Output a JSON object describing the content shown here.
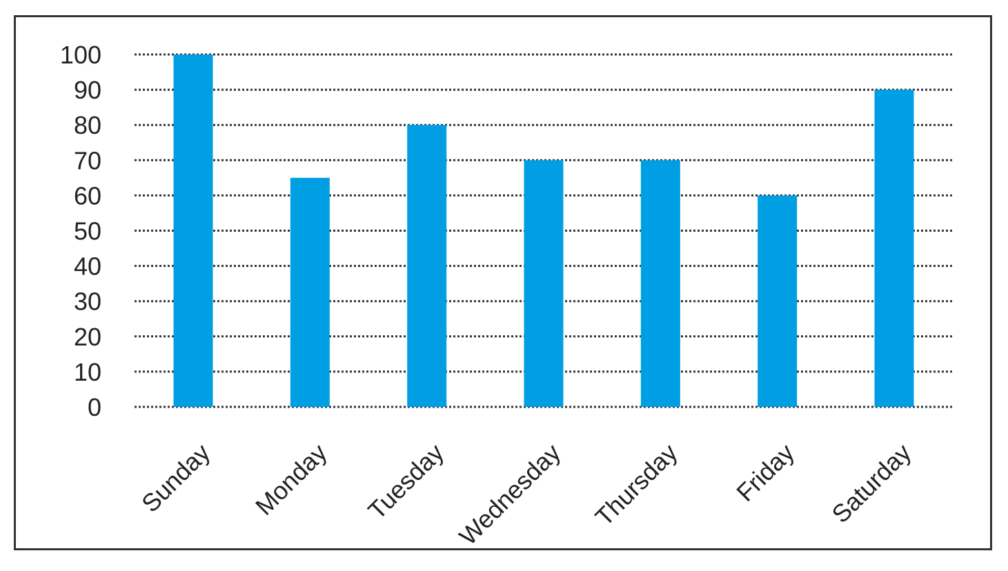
{
  "chart_data": {
    "type": "bar",
    "categories": [
      "Sunday",
      "Monday",
      "Tuesday",
      "Wednesday",
      "Thursday",
      "Friday",
      "Saturday"
    ],
    "values": [
      100,
      65,
      80,
      70,
      70,
      60,
      90
    ],
    "title": "",
    "xlabel": "",
    "ylabel": "",
    "ylim": [
      0,
      100
    ],
    "yticks": [
      0,
      10,
      20,
      30,
      40,
      50,
      60,
      70,
      80,
      90,
      100
    ],
    "grid": true,
    "grid_style": "dotted",
    "bar_color": "#009FE3",
    "grid_color": "#333333",
    "tick_color": "#222222"
  }
}
